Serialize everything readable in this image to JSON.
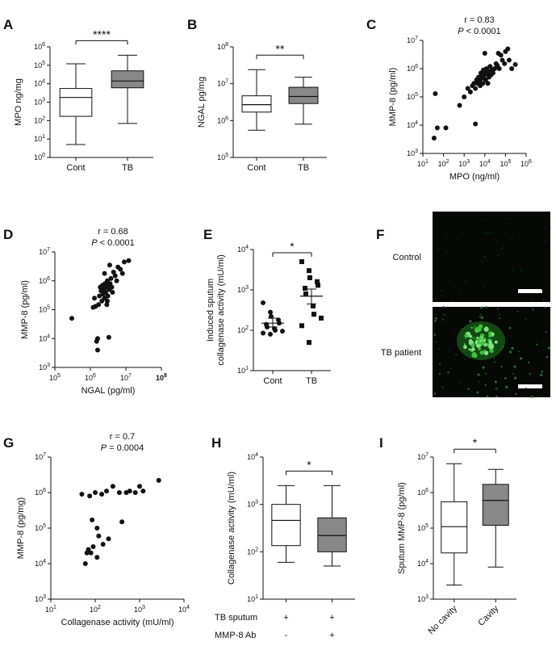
{
  "panels": [
    {
      "id": "A",
      "type": "box",
      "letter": "A",
      "ylabel": "MPO ng/mg",
      "yscale": "log",
      "ylim": [
        1,
        1000000
      ],
      "yticks": [
        {
          "v": 1,
          "b": "10",
          "e": "0"
        },
        {
          "v": 10,
          "b": "10",
          "e": "1"
        },
        {
          "v": 100,
          "b": "10",
          "e": "2"
        },
        {
          "v": 1000,
          "b": "10",
          "e": "3"
        },
        {
          "v": 10000,
          "b": "10",
          "e": "4"
        },
        {
          "v": 100000,
          "b": "10",
          "e": "5"
        },
        {
          "v": 1000000,
          "b": "10",
          "e": "6"
        }
      ],
      "categories": [
        "Cont",
        "TB"
      ],
      "boxes": [
        {
          "min": 5,
          "q1": 170,
          "median": 1800,
          "q3": 5500,
          "max": 120000,
          "color": "#ffffff"
        },
        {
          "min": 70,
          "q1": 6000,
          "median": 14000,
          "q3": 50000,
          "max": 350000,
          "color": "#888888"
        }
      ],
      "sig": "****"
    },
    {
      "id": "B",
      "type": "box",
      "letter": "B",
      "ylabel": "NGAL pg/mg",
      "yscale": "log",
      "ylim": [
        100000,
        100000000
      ],
      "yticks": [
        {
          "v": 100000,
          "b": "10",
          "e": "5"
        },
        {
          "v": 1000000,
          "b": "10",
          "e": "6"
        },
        {
          "v": 10000000,
          "b": "10",
          "e": "7"
        },
        {
          "v": 100000000,
          "b": "10",
          "e": "8"
        }
      ],
      "categories": [
        "Cont",
        "TB"
      ],
      "boxes": [
        {
          "min": 550000,
          "q1": 1700000,
          "median": 2700000,
          "q3": 4700000,
          "max": 24000000,
          "color": "#ffffff"
        },
        {
          "min": 800000,
          "q1": 2900000,
          "median": 4500000,
          "q3": 8000000,
          "max": 15000000,
          "color": "#888888"
        }
      ],
      "sig": "**"
    },
    {
      "id": "C",
      "type": "scatter",
      "letter": "C",
      "r": "r = 0.83",
      "p_prefix": "P",
      "p_rest": " < 0.0001",
      "xlabel": "MPO (ng/ml)",
      "ylabel": "MMP-8 (pg/ml)",
      "xlim": [
        10,
        1000000
      ],
      "ylim": [
        1000,
        10000000
      ],
      "xticks": [
        {
          "v": 10,
          "b": "10",
          "e": "1"
        },
        {
          "v": 100,
          "b": "10",
          "e": "2"
        },
        {
          "v": 1000,
          "b": "10",
          "e": "3"
        },
        {
          "v": 10000,
          "b": "10",
          "e": "4"
        },
        {
          "v": 100000,
          "b": "10",
          "e": "5"
        },
        {
          "v": 1000000,
          "b": "10",
          "e": "6"
        }
      ],
      "yticks": [
        {
          "v": 1000,
          "b": "10",
          "e": "3"
        },
        {
          "v": 10000,
          "b": "10",
          "e": "4"
        },
        {
          "v": 100000,
          "b": "10",
          "e": "5"
        },
        {
          "v": 1000000,
          "b": "10",
          "e": "6"
        },
        {
          "v": 10000000,
          "b": "10",
          "e": "7"
        }
      ],
      "points": [
        [
          35,
          3500
        ],
        [
          40,
          130000
        ],
        [
          50,
          8000
        ],
        [
          130,
          8000
        ],
        [
          3500,
          11000
        ],
        [
          600,
          50000
        ],
        [
          1000,
          100000
        ],
        [
          1500,
          200000
        ],
        [
          2000,
          150000
        ],
        [
          2500,
          250000
        ],
        [
          3000,
          300000
        ],
        [
          3500,
          200000
        ],
        [
          4000,
          400000
        ],
        [
          4500,
          300000
        ],
        [
          5000,
          500000
        ],
        [
          5500,
          350000
        ],
        [
          6000,
          250000
        ],
        [
          6500,
          700000
        ],
        [
          7000,
          450000
        ],
        [
          7500,
          600000
        ],
        [
          8000,
          300000
        ],
        [
          8500,
          900000
        ],
        [
          9000,
          550000
        ],
        [
          10000,
          700000
        ],
        [
          11000,
          400000
        ],
        [
          12000,
          1000000
        ],
        [
          13000,
          650000
        ],
        [
          14000,
          300000
        ],
        [
          15000,
          800000
        ],
        [
          16000,
          500000
        ],
        [
          18000,
          1200000
        ],
        [
          20000,
          600000
        ],
        [
          22000,
          900000
        ],
        [
          25000,
          700000
        ],
        [
          30000,
          1000000
        ],
        [
          35000,
          1500000
        ],
        [
          40000,
          1300000
        ],
        [
          45000,
          3500000
        ],
        [
          50000,
          1000000
        ],
        [
          60000,
          3000000
        ],
        [
          70000,
          2000000
        ],
        [
          90000,
          1500000
        ],
        [
          100000,
          4000000
        ],
        [
          130000,
          5000000
        ],
        [
          150000,
          2000000
        ],
        [
          200000,
          1000000
        ],
        [
          300000,
          1400000
        ],
        [
          10000,
          3500000
        ]
      ]
    },
    {
      "id": "D",
      "type": "scatter",
      "letter": "D",
      "r": "r = 0.68",
      "p_prefix": "P",
      "p_rest": " < 0.0001",
      "xlabel": "NGAL (pg/ml)",
      "ylabel": "MMP-8 (pg/ml)",
      "xlim": [
        100000,
        100000000
      ],
      "ylim": [
        1000,
        10000000
      ],
      "xticks": [
        {
          "v": 100000,
          "b": "10",
          "e": "5"
        },
        {
          "v": 1000000,
          "b": "10",
          "e": "6"
        },
        {
          "v": 10000000,
          "b": "10",
          "e": "7"
        },
        {
          "v": 100000000,
          "b": "10",
          "e": "8",
          "bold": true
        }
      ],
      "yticks": [
        {
          "v": 1000,
          "b": "10",
          "e": "3"
        },
        {
          "v": 10000,
          "b": "10",
          "e": "4"
        },
        {
          "v": 100000,
          "b": "10",
          "e": "5"
        },
        {
          "v": 1000000,
          "b": "10",
          "e": "6"
        },
        {
          "v": 10000000,
          "b": "10",
          "e": "7"
        }
      ],
      "points": [
        [
          300000,
          50000
        ],
        [
          1200000,
          120000
        ],
        [
          1300000,
          250000
        ],
        [
          1400000,
          130000
        ],
        [
          1500000,
          8000
        ],
        [
          1600000,
          10000
        ],
        [
          1600000,
          4000
        ],
        [
          1700000,
          150000
        ],
        [
          1800000,
          300000
        ],
        [
          1900000,
          600000
        ],
        [
          2000000,
          450000
        ],
        [
          2100000,
          200000
        ],
        [
          2200000,
          700000
        ],
        [
          2300000,
          350000
        ],
        [
          2400000,
          500000
        ],
        [
          2500000,
          250000
        ],
        [
          2600000,
          800000
        ],
        [
          2700000,
          400000
        ],
        [
          2800000,
          600000
        ],
        [
          2900000,
          150000
        ],
        [
          3000000,
          1000000
        ],
        [
          3100000,
          300000
        ],
        [
          3200000,
          700000
        ],
        [
          3300000,
          11000
        ],
        [
          3400000,
          500000
        ],
        [
          3500000,
          3500000
        ],
        [
          3600000,
          800000
        ],
        [
          3800000,
          1200000
        ],
        [
          4000000,
          600000
        ],
        [
          4200000,
          400000
        ],
        [
          4500000,
          2000000
        ],
        [
          5000000,
          1500000
        ],
        [
          5500000,
          1000000
        ],
        [
          6000000,
          3000000
        ],
        [
          7000000,
          2500000
        ],
        [
          8000000,
          1800000
        ],
        [
          9000000,
          4500000
        ],
        [
          12000000,
          5000000
        ],
        [
          2500000,
          1800000
        ],
        [
          3000000,
          200000
        ]
      ]
    },
    {
      "id": "E",
      "type": "dot",
      "letter": "E",
      "ylabel_lines": [
        "Induced sputum",
        "collagenase activity (mU/ml)"
      ],
      "yscale": "log",
      "ylim": [
        10,
        10000
      ],
      "yticks": [
        {
          "v": 10,
          "b": "10",
          "e": "1"
        },
        {
          "v": 100,
          "b": "10",
          "e": "2"
        },
        {
          "v": 1000,
          "b": "10",
          "e": "3"
        },
        {
          "v": 10000,
          "b": "10",
          "e": "4"
        }
      ],
      "categories": [
        "Cont",
        "TB"
      ],
      "groups": [
        {
          "marker": "circle",
          "mean": 150,
          "sem_low": 120,
          "sem_high": 200,
          "values": [
            480,
            280,
            220,
            180,
            150,
            140,
            120,
            110,
            100,
            95,
            85,
            80
          ]
        },
        {
          "marker": "square",
          "mean": 700,
          "sem_low": 450,
          "sem_high": 1050,
          "values": [
            5000,
            3000,
            2000,
            1600,
            1300,
            1100,
            800,
            400,
            250,
            200,
            130,
            50
          ]
        }
      ],
      "sig": "*"
    },
    {
      "id": "F",
      "type": "image",
      "letter": "F",
      "labels": [
        "Control",
        "TB patient"
      ]
    },
    {
      "id": "G",
      "type": "scatter",
      "letter": "G",
      "r": "r = 0.7",
      "p_prefix": "P",
      "p_rest": " = 0.0004",
      "xlabel": "Collagenase activity (mU/ml)",
      "ylabel": "MMP-8 (pg/mg)",
      "xlim": [
        10,
        10000
      ],
      "ylim": [
        1000,
        10000000
      ],
      "xticks": [
        {
          "v": 10,
          "b": "10",
          "e": "1"
        },
        {
          "v": 100,
          "b": "10",
          "e": "2"
        },
        {
          "v": 1000,
          "b": "10",
          "e": "3"
        },
        {
          "v": 10000,
          "b": "10",
          "e": "4"
        }
      ],
      "yticks": [
        {
          "v": 1000,
          "b": "10",
          "e": "3"
        },
        {
          "v": 10000,
          "b": "10",
          "e": "4"
        },
        {
          "v": 100000,
          "b": "10",
          "e": "5"
        },
        {
          "v": 1000000,
          "b": "10",
          "e": "6"
        },
        {
          "v": 10000000,
          "b": "10",
          "e": "7"
        }
      ],
      "points": [
        [
          50,
          900000
        ],
        [
          60,
          10000
        ],
        [
          65,
          20000
        ],
        [
          70,
          25000
        ],
        [
          75,
          800000
        ],
        [
          80,
          20000
        ],
        [
          85,
          170000
        ],
        [
          90,
          30000
        ],
        [
          100,
          1000000
        ],
        [
          110,
          100000
        ],
        [
          120,
          60000
        ],
        [
          140,
          900000
        ],
        [
          150,
          35000
        ],
        [
          180,
          1100000
        ],
        [
          200,
          50000
        ],
        [
          250,
          1500000
        ],
        [
          350,
          1000000
        ],
        [
          400,
          150000
        ],
        [
          500,
          1000000
        ],
        [
          600,
          1100000
        ],
        [
          800,
          1000000
        ],
        [
          1000,
          1500000
        ],
        [
          1200,
          1100000
        ],
        [
          2700,
          2200000
        ],
        [
          110,
          15000
        ]
      ]
    },
    {
      "id": "H",
      "type": "box",
      "letter": "H",
      "ylabel": "Collagenase activity (mU/ml)",
      "yscale": "log",
      "ylim": [
        10,
        10000
      ],
      "yticks": [
        {
          "v": 10,
          "b": "10",
          "e": "1"
        },
        {
          "v": 100,
          "b": "10",
          "e": "2"
        },
        {
          "v": 1000,
          "b": "10",
          "e": "3"
        },
        {
          "v": 10000,
          "b": "10",
          "e": "4"
        }
      ],
      "categories": [
        "",
        ""
      ],
      "boxes": [
        {
          "min": 60,
          "q1": 135,
          "median": 460,
          "q3": 1000,
          "max": 2500,
          "color": "#ffffff"
        },
        {
          "min": 50,
          "q1": 100,
          "median": 220,
          "q3": 520,
          "max": 2500,
          "color": "#888888"
        }
      ],
      "sig": "*",
      "rows": [
        {
          "label": "TB sputum",
          "values": [
            "+",
            "+"
          ]
        },
        {
          "label": "MMP-8 Ab",
          "values": [
            "-",
            "+"
          ]
        }
      ]
    },
    {
      "id": "I",
      "type": "box",
      "letter": "I",
      "ylabel": "Sputum MMP-8 (pg/ml)",
      "yscale": "log",
      "ylim": [
        1000,
        10000000
      ],
      "yticks": [
        {
          "v": 1000,
          "b": "10",
          "e": "3"
        },
        {
          "v": 10000,
          "b": "10",
          "e": "4"
        },
        {
          "v": 100000,
          "b": "10",
          "e": "5"
        },
        {
          "v": 1000000,
          "b": "10",
          "e": "6"
        },
        {
          "v": 10000000,
          "b": "10",
          "e": "7"
        }
      ],
      "categories": [
        "No cavity",
        "Cavity"
      ],
      "rotate_categories": true,
      "boxes": [
        {
          "min": 2500,
          "q1": 20000,
          "median": 110000,
          "q3": 550000,
          "max": 6500000,
          "color": "#ffffff"
        },
        {
          "min": 8000,
          "q1": 120000,
          "median": 600000,
          "q3": 1700000,
          "max": 4500000,
          "color": "#888888"
        }
      ],
      "sig": "*"
    }
  ]
}
